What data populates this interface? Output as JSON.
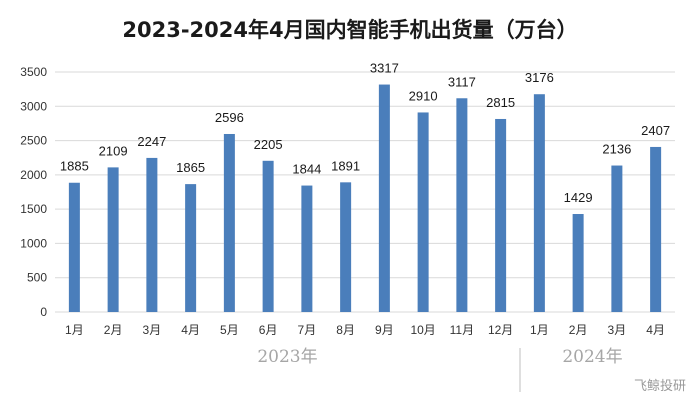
{
  "chart_data": {
    "type": "bar",
    "title": "2023-2024年4月国内智能手机出货量（万台）",
    "categories": [
      "1月",
      "2月",
      "3月",
      "4月",
      "5月",
      "6月",
      "7月",
      "8月",
      "9月",
      "10月",
      "11月",
      "12月",
      "1月",
      "2月",
      "3月",
      "4月"
    ],
    "values": [
      1885,
      2109,
      2247,
      1865,
      2596,
      2205,
      1844,
      1891,
      3317,
      2910,
      3117,
      2815,
      3176,
      1429,
      2136,
      2407
    ],
    "groups": [
      {
        "label": "2023年",
        "start": 0,
        "end": 11
      },
      {
        "label": "2024年",
        "start": 12,
        "end": 15
      }
    ],
    "ylim": [
      0,
      3500
    ],
    "yticks": [
      0,
      500,
      1000,
      1500,
      2000,
      2500,
      3000,
      3500
    ],
    "grid": true,
    "bar_color": "#4a7ebb"
  },
  "watermark": "飞鲸投研"
}
